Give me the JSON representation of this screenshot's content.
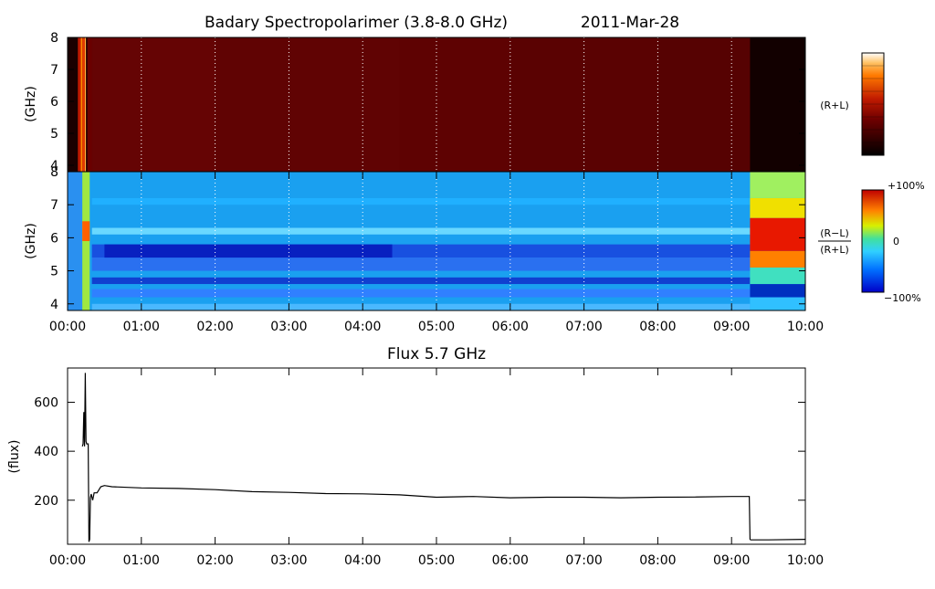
{
  "title": "Badary Spectropolarimer (3.8-8.0 GHz)",
  "date": "2011-Mar-28",
  "colors": {
    "intensity_low": "#000000",
    "intensity_mid": "#7a0404",
    "intensity_high": "#ffffff",
    "polarization_low": "#0000c8",
    "polarization_mid": "#14a0ff",
    "polarization_high": "#c80000",
    "flux_line": "#000000"
  },
  "chart_data": [
    {
      "type": "heatmap",
      "name": "intensity",
      "ylabel": "(GHz)",
      "side_label": "(R+L)",
      "x_ticks": [
        "00:00",
        "01:00",
        "02:00",
        "03:00",
        "04:00",
        "05:00",
        "06:00",
        "07:00",
        "08:00",
        "09:00",
        "10:00"
      ],
      "xlim_hours": [
        0,
        10
      ],
      "y_ticks": [
        4,
        5,
        6,
        7,
        8
      ],
      "ylim": [
        3.8,
        8.0
      ],
      "grid": "vertical dotted at every hour",
      "colorbar": "black-red-orange-white"
    },
    {
      "type": "heatmap",
      "name": "polarization",
      "ylabel": "(GHz)",
      "side_label_top": "(R−L)",
      "side_label_bottom": "(R+L)",
      "x_ticks": [
        "00:00",
        "01:00",
        "02:00",
        "03:00",
        "04:00",
        "05:00",
        "06:00",
        "07:00",
        "08:00",
        "09:00",
        "10:00"
      ],
      "xlim_hours": [
        0,
        10
      ],
      "y_ticks": [
        4,
        5,
        6,
        7,
        8
      ],
      "ylim": [
        3.8,
        8.0
      ],
      "grid": "vertical dotted at every hour",
      "colorbar_labels": [
        "+100%",
        "0",
        "−100%"
      ],
      "colorbar": "blue-cyan-green-yellow-red"
    },
    {
      "type": "line",
      "title": "Flux 5.7 GHz",
      "ylabel": "(flux)",
      "x_ticks": [
        "00:00",
        "01:00",
        "02:00",
        "03:00",
        "04:00",
        "05:00",
        "06:00",
        "07:00",
        "08:00",
        "09:00",
        "10:00"
      ],
      "xlim_hours": [
        0,
        10
      ],
      "y_ticks": [
        200,
        400,
        600
      ],
      "ylim": [
        20,
        740
      ],
      "series": [
        {
          "x_hours": [
            0.2,
            0.21,
            0.22,
            0.23,
            0.24,
            0.25,
            0.26,
            0.27,
            0.28,
            0.29,
            0.3,
            0.31,
            0.32,
            0.34,
            0.36,
            0.4,
            0.45,
            0.5,
            0.6,
            1.0,
            1.5,
            2.0,
            2.5,
            3.0,
            3.5,
            4.0,
            4.5,
            5.0,
            5.5,
            6.0,
            6.5,
            7.0,
            7.5,
            8.0,
            8.5,
            9.0,
            9.24,
            9.25,
            9.26,
            9.5,
            10.0
          ],
          "values": [
            420,
            430,
            560,
            420,
            720,
            440,
            430,
            430,
            430,
            30,
            40,
            210,
            225,
            200,
            230,
            230,
            255,
            260,
            255,
            250,
            248,
            243,
            235,
            232,
            227,
            226,
            222,
            212,
            215,
            210,
            212,
            212,
            210,
            212,
            213,
            215,
            215,
            40,
            38,
            38,
            40
          ]
        }
      ]
    }
  ]
}
